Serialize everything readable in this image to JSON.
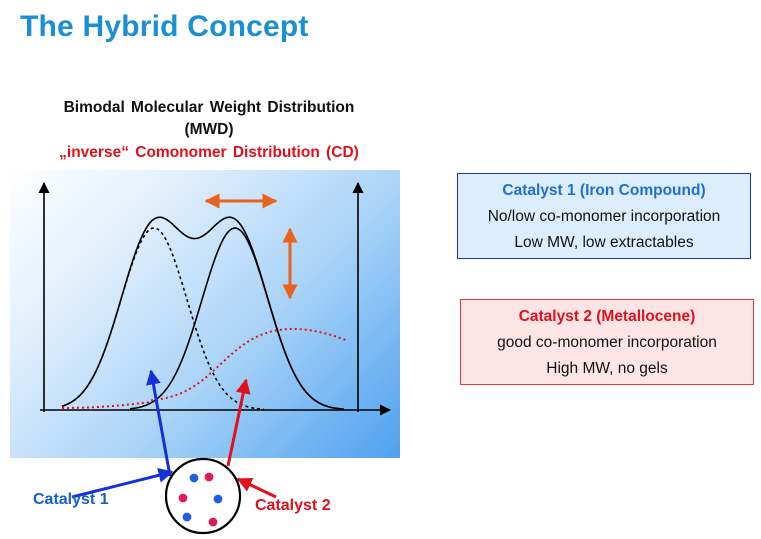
{
  "title": "The Hybrid Concept",
  "headings": {
    "line1": "Bimodal Molecular Weight Distribution",
    "line2": "(MWD)",
    "line3": "„inverse“ Comonomer Distribution (CD)"
  },
  "catalyst1_box": {
    "title": "Catalyst 1 (Iron Compound)",
    "line1": "No/low co-monomer incorporation",
    "line2": "Low MW, low extractables"
  },
  "catalyst2_box": {
    "title": "Catalyst 2 (Metallocene)",
    "line1": "good co-monomer incorporation",
    "line2": "High MW, no gels"
  },
  "labels": {
    "catalyst1": "Catalyst 1",
    "catalyst2": "Catalyst 2"
  },
  "colors": {
    "title_blue": "#1a8fd6",
    "catalyst_red": "#e0101c",
    "catalyst_blue": "#1560c8",
    "arrow_orange": "#e8641c"
  }
}
